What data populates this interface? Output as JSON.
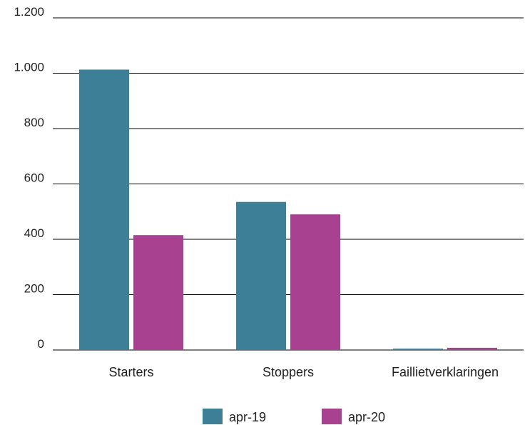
{
  "chart_data": {
    "type": "bar",
    "title": "",
    "xlabel": "",
    "ylabel": "",
    "categories": [
      "Starters",
      "Stoppers",
      "Faillietverklaringen"
    ],
    "series": [
      {
        "name": "apr-19",
        "color": "#3d7f97",
        "values": [
          1013,
          535,
          5
        ]
      },
      {
        "name": "apr-20",
        "color": "#a8418f",
        "values": [
          415,
          490,
          8
        ]
      }
    ],
    "ylim": [
      0,
      1200
    ],
    "yticks": [
      0,
      200,
      400,
      600,
      800,
      1000,
      1200
    ],
    "ytick_labels": [
      "0",
      "200",
      "400",
      "600",
      "800",
      "1.000",
      "1.200"
    ],
    "grid": true,
    "legend_position": "bottom"
  }
}
